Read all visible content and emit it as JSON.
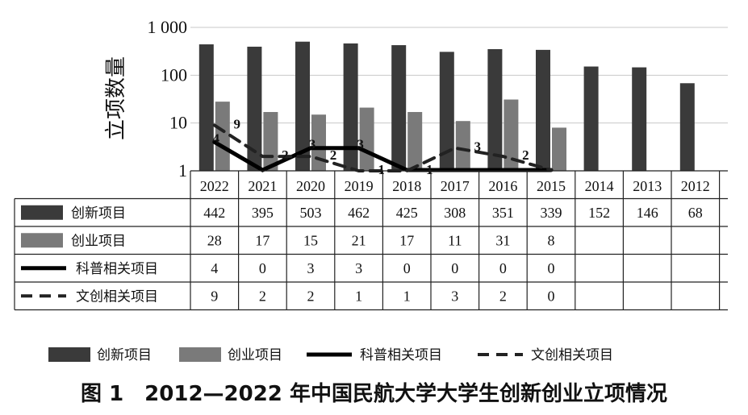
{
  "caption": "图 1　2012—2022 年中国民航大学大学生创新创业立项情况",
  "chart_data": {
    "type": "bar",
    "ylabel": "立项数量",
    "yscale": "log",
    "ylim": [
      1,
      1000
    ],
    "yticks": [
      1,
      10,
      100,
      1000
    ],
    "ytick_labels": [
      "1",
      "10",
      "100",
      "1 000"
    ],
    "grid": true,
    "legend_position": "bottom",
    "categories": [
      "2022",
      "2021",
      "2020",
      "2019",
      "2018",
      "2017",
      "2016",
      "2015",
      "2014",
      "2013",
      "2012"
    ],
    "series": [
      {
        "name": "创新项目",
        "kind": "bar",
        "color": "#3a3a3a",
        "values": [
          442,
          395,
          503,
          462,
          425,
          308,
          351,
          339,
          152,
          146,
          68
        ]
      },
      {
        "name": "创业项目",
        "kind": "bar",
        "color": "#7a7a7a",
        "values": [
          28,
          17,
          15,
          21,
          17,
          11,
          31,
          8,
          null,
          null,
          null
        ]
      },
      {
        "name": "科普相关项目",
        "kind": "line",
        "style": "solid",
        "color": "#000000",
        "values": [
          4,
          0,
          3,
          3,
          0,
          0,
          0,
          0,
          null,
          null,
          null
        ]
      },
      {
        "name": "文创相关项目",
        "kind": "line",
        "style": "dashed",
        "color": "#222222",
        "values": [
          9,
          2,
          2,
          1,
          1,
          3,
          2,
          0,
          null,
          null,
          null
        ]
      }
    ]
  }
}
